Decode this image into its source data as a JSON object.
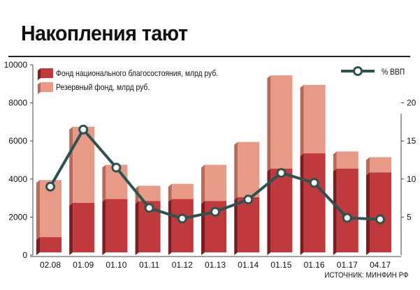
{
  "title": "Накопления тают",
  "source": "ИСТОЧНИК: МИНФИН РФ",
  "legend": {
    "nwf": "Фонд национального благосостояния, млрд руб.",
    "reserve": "Резервный фонд, млрд руб.",
    "gdp": "% ВВП"
  },
  "colors": {
    "nwf": "#c0393c",
    "nwf_dark": "#7d1d22",
    "reserve": "#e79a86",
    "reserve_dark": "#b8695a",
    "line": "#2b5450",
    "axis": "#444444"
  },
  "chart_data": {
    "type": "bar",
    "stacked": true,
    "categories": [
      "02.08",
      "01.09",
      "01.10",
      "01.11",
      "01.12",
      "01.13",
      "01.14",
      "01.15",
      "01.16",
      "01.17",
      "04.17"
    ],
    "series": [
      {
        "name": "Фонд национального благосостояния, млрд руб.",
        "values": [
          800,
          2600,
          2800,
          2700,
          2800,
          2700,
          2900,
          4400,
          5200,
          4400,
          4200
        ]
      },
      {
        "name": "Резервный фонд, млрд руб.",
        "values": [
          3000,
          4000,
          1800,
          800,
          800,
          1900,
          2900,
          4900,
          3600,
          900,
          800
        ]
      }
    ],
    "line_series": {
      "name": "% ВВП",
      "values": [
        9,
        16.5,
        11.5,
        6.2,
        4.8,
        5.7,
        7.3,
        10.8,
        9.5,
        4.9,
        4.7
      ]
    },
    "y_left": {
      "min": 0,
      "max": 10000,
      "ticks": [
        "0",
        "2000",
        "4000",
        "6000",
        "8000",
        "10000"
      ]
    },
    "y_right": {
      "min": 0,
      "max": 25,
      "ticks": [
        "5",
        "10",
        "15",
        "20"
      ]
    },
    "grid": false
  }
}
